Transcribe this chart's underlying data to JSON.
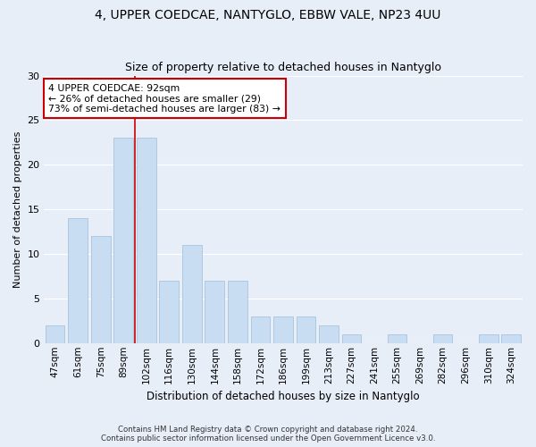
{
  "title_line1": "4, UPPER COEDCAE, NANTYGLO, EBBW VALE, NP23 4UU",
  "title_line2": "Size of property relative to detached houses in Nantyglo",
  "xlabel": "Distribution of detached houses by size in Nantyglo",
  "ylabel": "Number of detached properties",
  "categories": [
    "47sqm",
    "61sqm",
    "75sqm",
    "89sqm",
    "102sqm",
    "116sqm",
    "130sqm",
    "144sqm",
    "158sqm",
    "172sqm",
    "186sqm",
    "199sqm",
    "213sqm",
    "227sqm",
    "241sqm",
    "255sqm",
    "269sqm",
    "282sqm",
    "296sqm",
    "310sqm",
    "324sqm"
  ],
  "values": [
    2,
    14,
    12,
    23,
    23,
    7,
    11,
    7,
    7,
    3,
    3,
    3,
    2,
    1,
    0,
    1,
    0,
    1,
    0,
    1,
    1
  ],
  "bar_color": "#c9ddf2",
  "bar_edge_color": "#a8c4e0",
  "vline_x": 3.5,
  "vline_color": "#cc0000",
  "annotation_text": "4 UPPER COEDCAE: 92sqm\n← 26% of detached houses are smaller (29)\n73% of semi-detached houses are larger (83) →",
  "annotation_box_color": "white",
  "annotation_box_edge_color": "#cc0000",
  "ylim": [
    0,
    30
  ],
  "yticks": [
    0,
    5,
    10,
    15,
    20,
    25,
    30
  ],
  "footer_line1": "Contains HM Land Registry data © Crown copyright and database right 2024.",
  "footer_line2": "Contains public sector information licensed under the Open Government Licence v3.0.",
  "background_color": "#e8eef8",
  "plot_background_color": "#e8eef8",
  "grid_color": "#ffffff"
}
